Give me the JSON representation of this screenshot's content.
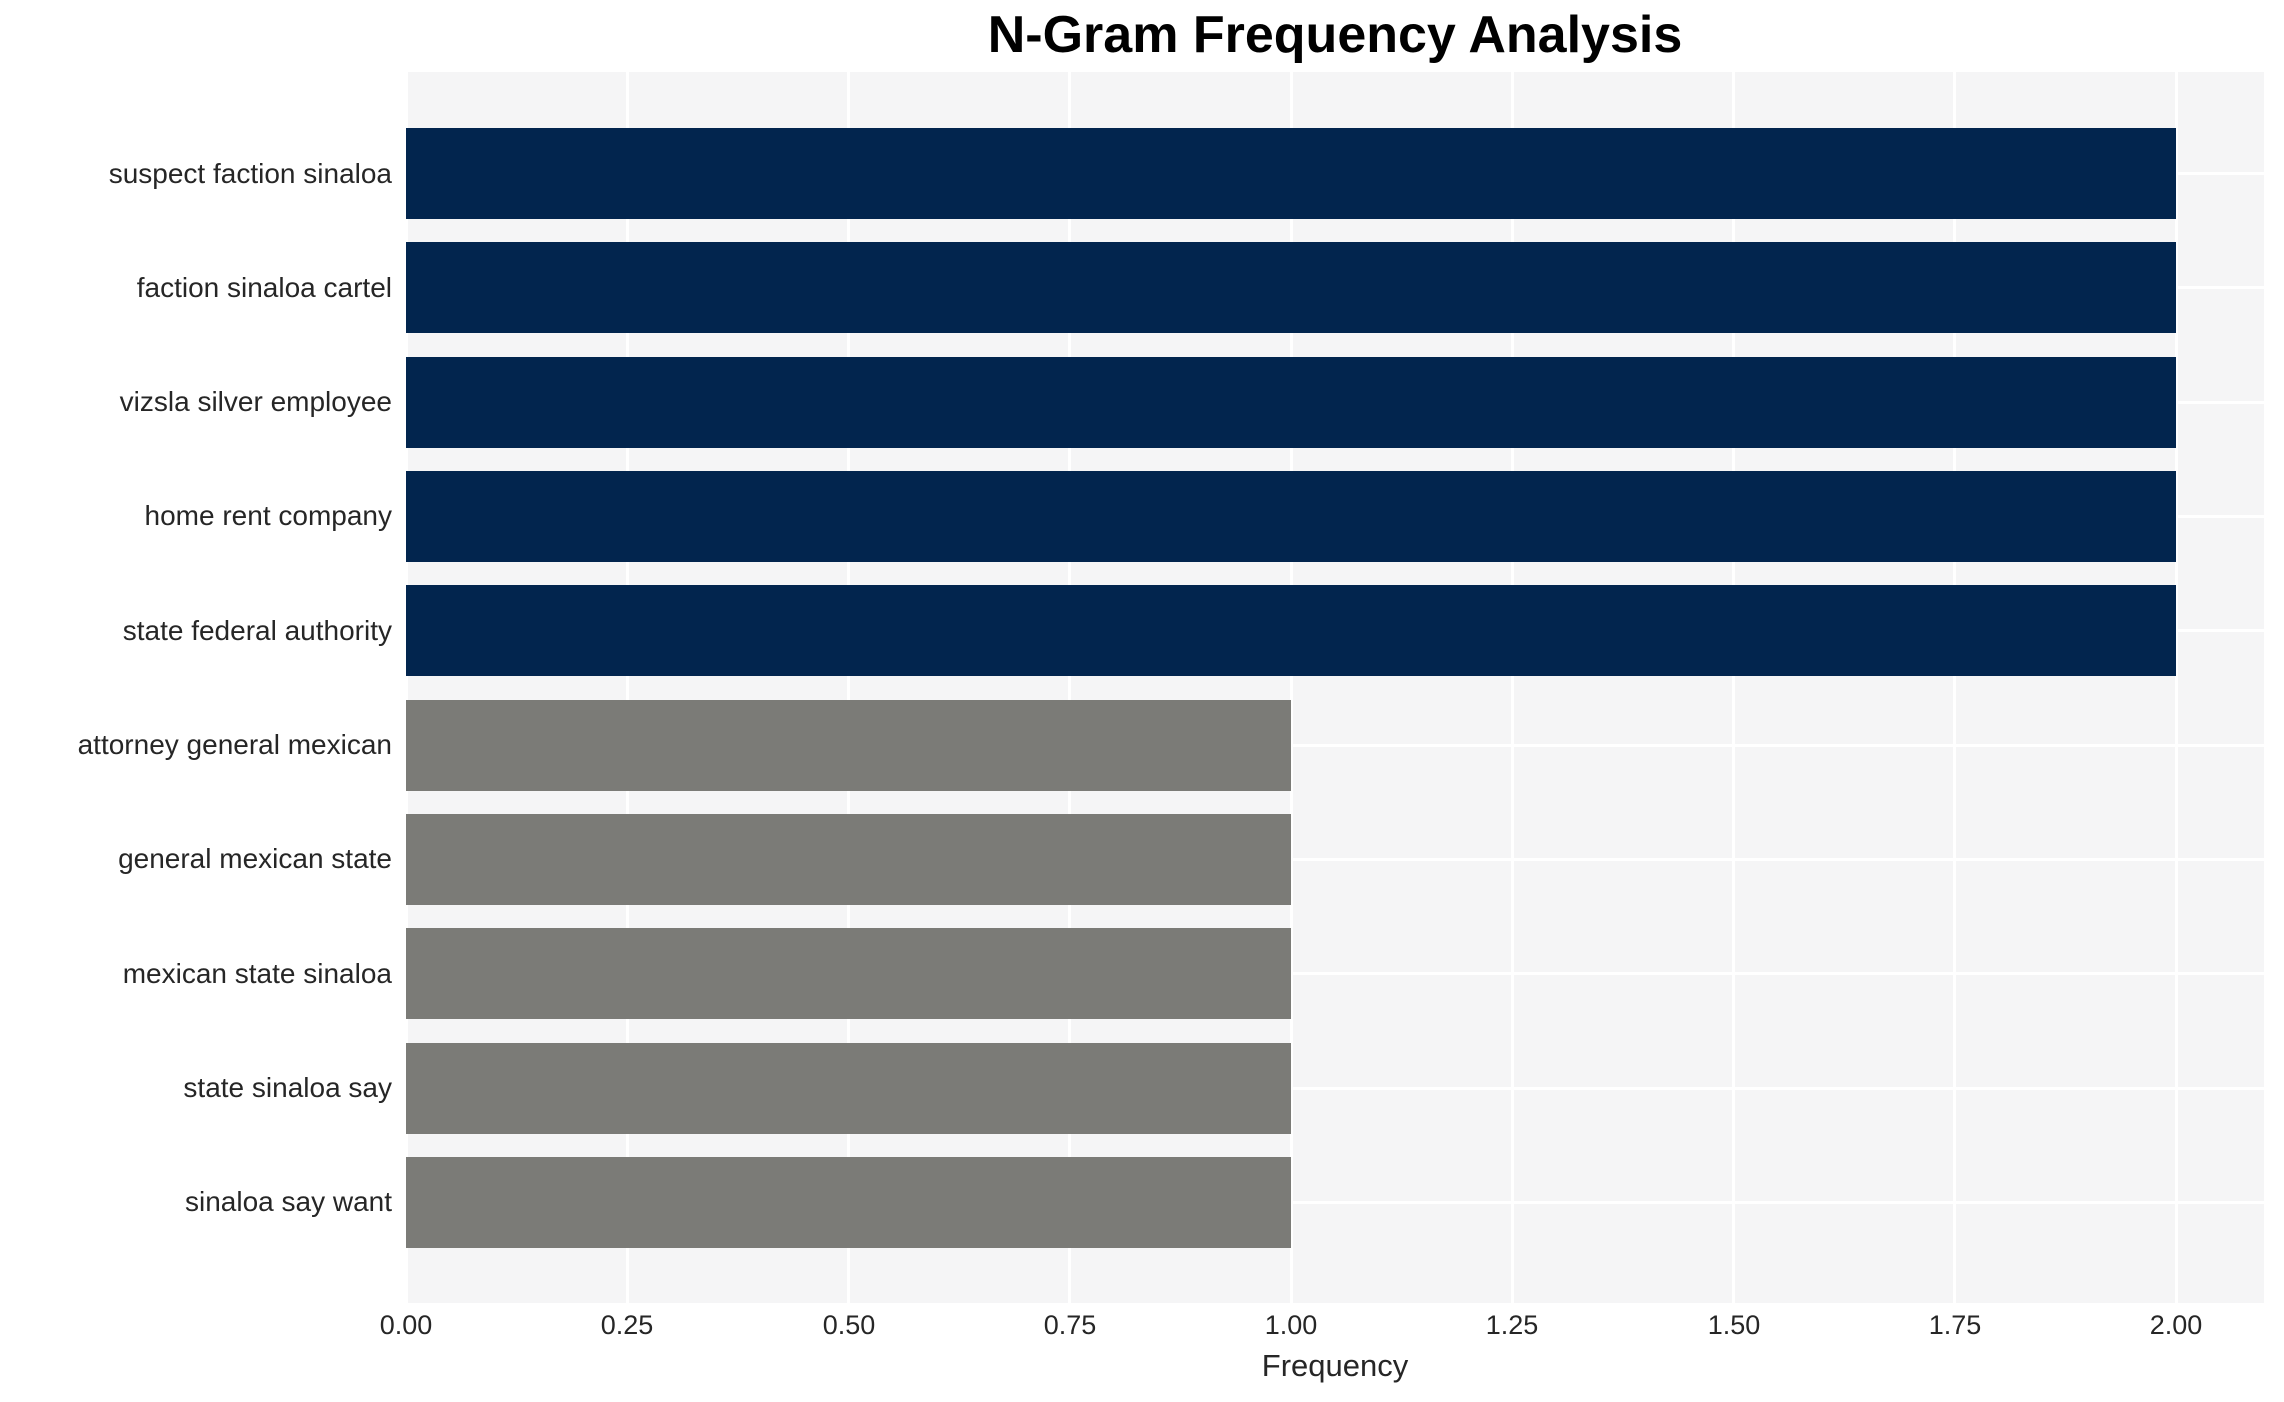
{
  "chart_data": {
    "type": "bar",
    "orientation": "horizontal",
    "title": "N-Gram Frequency Analysis",
    "xlabel": "Frequency",
    "ylabel": "",
    "categories": [
      "suspect faction sinaloa",
      "faction sinaloa cartel",
      "vizsla silver employee",
      "home rent company",
      "state federal authority",
      "attorney general mexican",
      "general mexican state",
      "mexican state sinaloa",
      "state sinaloa say",
      "sinaloa say want"
    ],
    "values": [
      2,
      2,
      2,
      2,
      2,
      1,
      1,
      1,
      1,
      1
    ],
    "bar_colors": [
      "#02254e",
      "#02254e",
      "#02254e",
      "#02254e",
      "#02254e",
      "#7b7b77",
      "#7b7b77",
      "#7b7b77",
      "#7b7b77",
      "#7b7b77"
    ],
    "xlim": [
      0,
      2.1
    ],
    "xtick_values": [
      0,
      0.25,
      0.5,
      0.75,
      1.0,
      1.25,
      1.5,
      1.75,
      2.0
    ],
    "xtick_labels": [
      "0.00",
      "0.25",
      "0.50",
      "0.75",
      "1.00",
      "1.25",
      "1.50",
      "1.75",
      "2.00"
    ],
    "grid": true,
    "grid_color": "#ffffff",
    "plot_background": "#f5f5f6",
    "legend": false
  }
}
